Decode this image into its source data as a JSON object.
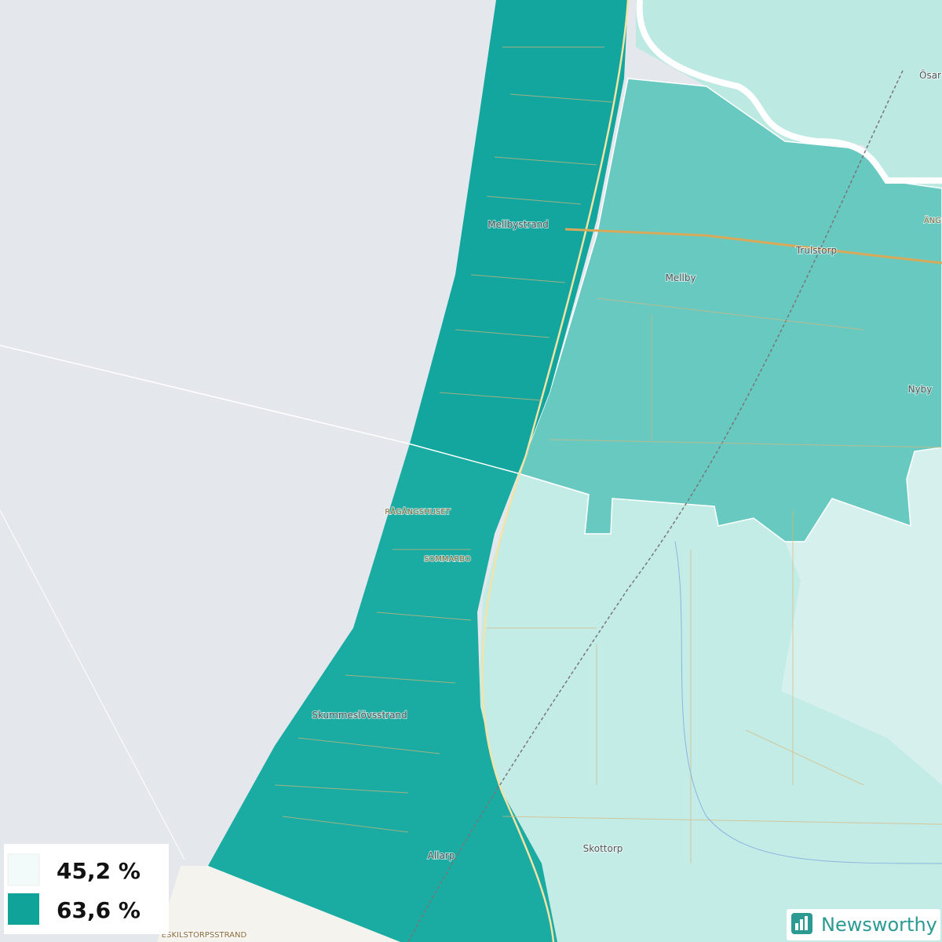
{
  "places": [
    "Mellbystrand",
    "Trulstorp",
    "Mellby",
    "Nyby",
    "Ösar",
    "ÄNG",
    "RÅGÅNGSHUSET",
    "SOMMARBO",
    "Skummeslövsstrand",
    "Allarp",
    "Skottorp",
    "ESKILSTORPSSTRAND"
  ],
  "legend": [
    {
      "label": "45,2 %",
      "color": "#f2fbfa"
    },
    {
      "label": "63,6 %",
      "color": "#0fa39a"
    }
  ],
  "brand": "Newsworthy"
}
